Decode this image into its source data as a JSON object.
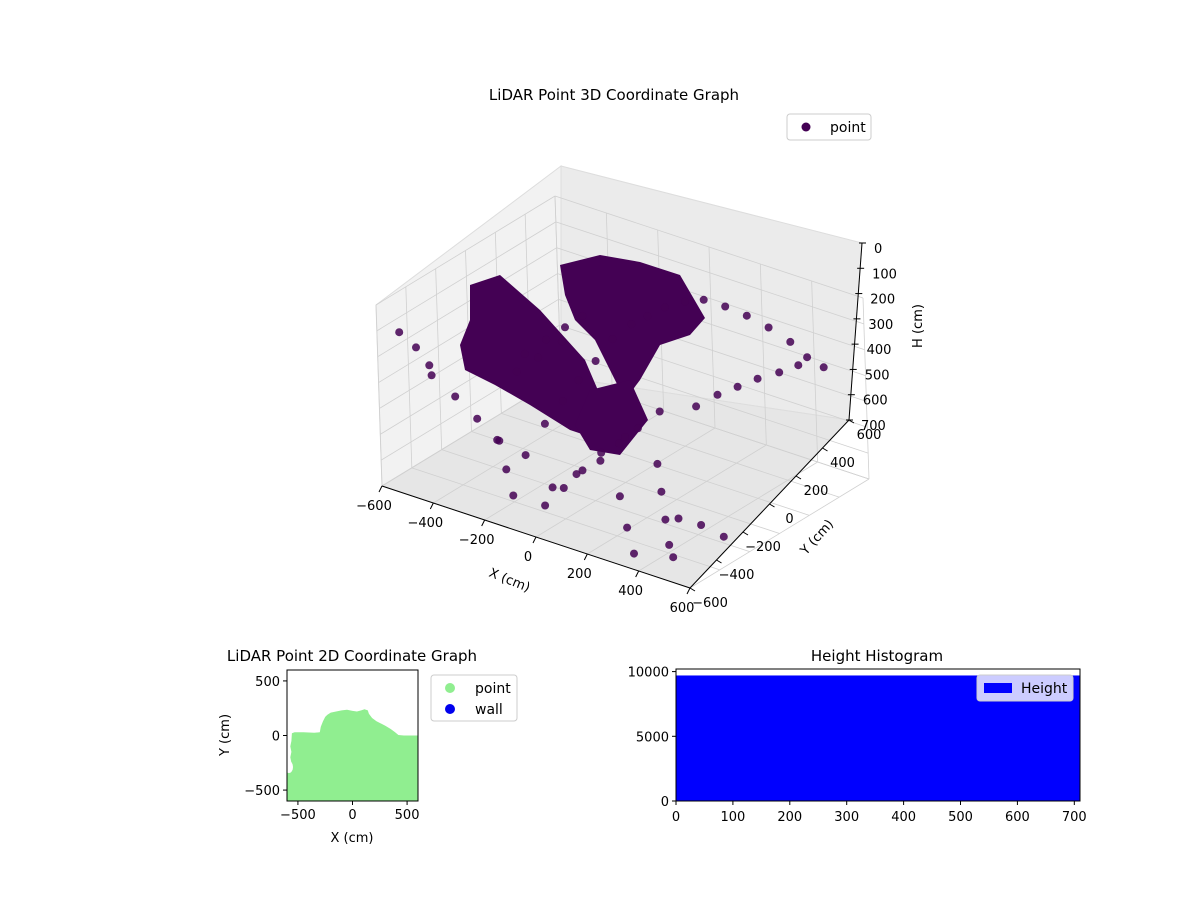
{
  "chart_data": [
    {
      "type": "scatter",
      "projection": "3d",
      "title": "LiDAR Point 3D Coordinate Graph",
      "xlabel": "X (cm)",
      "ylabel": "Y (cm)",
      "zlabel": "H (cm)",
      "xlim": [
        -600,
        600
      ],
      "ylim": [
        -600,
        600
      ],
      "zlim": [
        700,
        0
      ],
      "x_ticks": [
        "−600",
        "−400",
        "−200",
        "0",
        "200",
        "400",
        "600"
      ],
      "y_ticks": [
        "−600",
        "−400",
        "−200",
        "0",
        "200",
        "400",
        "600"
      ],
      "z_ticks": [
        "0",
        "100",
        "200",
        "300",
        "400",
        "500",
        "600",
        "700"
      ],
      "legend": "top-right",
      "grid": true,
      "series": [
        {
          "name": "point",
          "color": "#440154",
          "points_xyz": [
            [
              -560,
              -520,
              120
            ],
            [
              -520,
              -480,
              180
            ],
            [
              -500,
              -430,
              260
            ],
            [
              -540,
              -350,
              340
            ],
            [
              -480,
              -300,
              420
            ],
            [
              -420,
              -260,
              500
            ],
            [
              -380,
              -200,
              590
            ],
            [
              -300,
              -150,
              640
            ],
            [
              -250,
              -100,
              520
            ],
            [
              -200,
              -60,
              430
            ],
            [
              -160,
              -20,
              350
            ],
            [
              -120,
              30,
              280
            ],
            [
              -80,
              80,
              200
            ],
            [
              -40,
              140,
              150
            ],
            [
              0,
              180,
              120
            ],
            [
              40,
              230,
              90
            ],
            [
              90,
              280,
              70
            ],
            [
              140,
              320,
              60
            ],
            [
              200,
              360,
              80
            ],
            [
              260,
              400,
              110
            ],
            [
              320,
              440,
              150
            ],
            [
              380,
              480,
              200
            ],
            [
              420,
              520,
              260
            ],
            [
              460,
              560,
              300
            ],
            [
              120,
              40,
              400
            ],
            [
              80,
              -40,
              450
            ],
            [
              40,
              -100,
              500
            ],
            [
              0,
              -160,
              560
            ],
            [
              -60,
              -220,
              610
            ],
            [
              -120,
              -280,
              660
            ],
            [
              200,
              -120,
              520
            ],
            [
              260,
              -200,
              580
            ],
            [
              320,
              -280,
              640
            ],
            [
              380,
              -360,
              690
            ],
            [
              430,
              -420,
              700
            ],
            [
              -350,
              -50,
              300
            ],
            [
              -300,
              10,
              250
            ],
            [
              -260,
              70,
              210
            ],
            [
              -220,
              120,
              170
            ],
            [
              300,
              -20,
              300
            ],
            [
              350,
              40,
              260
            ],
            [
              400,
              90,
              230
            ],
            [
              450,
              140,
              200
            ],
            [
              500,
              200,
              180
            ],
            [
              540,
              260,
              160
            ],
            [
              -450,
              60,
              440
            ],
            [
              -400,
              120,
              390
            ],
            [
              -340,
              180,
              330
            ],
            [
              160,
              -260,
              380
            ],
            [
              100,
              -320,
              440
            ],
            [
              60,
              -380,
              500
            ],
            [
              20,
              -440,
              560
            ],
            [
              -20,
              -500,
              620
            ],
            [
              240,
              -440,
              520
            ],
            [
              300,
              -500,
              600
            ],
            [
              360,
              -560,
              660
            ],
            [
              -240,
              -420,
              470
            ],
            [
              -180,
              -480,
              540
            ],
            [
              -120,
              -540,
              600
            ],
            [
              560,
              -300,
              620
            ],
            [
              520,
              -380,
              560
            ],
            [
              480,
              -460,
              520
            ]
          ]
        }
      ]
    },
    {
      "type": "scatter",
      "title": "LiDAR Point 2D Coordinate Graph",
      "xlabel": "X (cm)",
      "ylabel": "Y (cm)",
      "xlim": [
        -600,
        600
      ],
      "ylim": [
        -600,
        600
      ],
      "x_ticks": [
        "−500",
        "0",
        "500"
      ],
      "y_ticks": [
        "−500",
        "0",
        "500"
      ],
      "legend": "outside-right",
      "series": [
        {
          "name": "point",
          "color": "#90ee90",
          "outline_xy": [
            [
              -600,
              -600
            ],
            [
              -600,
              -330
            ],
            [
              -570,
              -310
            ],
            [
              -560,
              -250
            ],
            [
              -570,
              -200
            ],
            [
              -560,
              -150
            ],
            [
              -570,
              -100
            ],
            [
              -560,
              -50
            ],
            [
              -555,
              20
            ],
            [
              -530,
              30
            ],
            [
              -450,
              30
            ],
            [
              -350,
              25
            ],
            [
              -300,
              30
            ],
            [
              -290,
              80
            ],
            [
              -270,
              130
            ],
            [
              -250,
              170
            ],
            [
              -230,
              190
            ],
            [
              -200,
              210
            ],
            [
              -150,
              220
            ],
            [
              -100,
              230
            ],
            [
              -50,
              235
            ],
            [
              0,
              225
            ],
            [
              40,
              220
            ],
            [
              80,
              230
            ],
            [
              110,
              240
            ],
            [
              140,
              230
            ],
            [
              150,
              200
            ],
            [
              180,
              160
            ],
            [
              220,
              130
            ],
            [
              260,
              110
            ],
            [
              300,
              90
            ],
            [
              350,
              60
            ],
            [
              390,
              30
            ],
            [
              420,
              5
            ],
            [
              470,
              0
            ],
            [
              600,
              0
            ],
            [
              600,
              -600
            ]
          ]
        },
        {
          "name": "wall",
          "color": "#0000ee",
          "points_xy": []
        }
      ]
    },
    {
      "type": "bar",
      "title": "Height Histogram",
      "xlim": [
        0,
        710
      ],
      "ylim": [
        0,
        10200
      ],
      "x_ticks": [
        "0",
        "100",
        "200",
        "300",
        "400",
        "500",
        "600",
        "700"
      ],
      "y_ticks": [
        "0",
        "5000",
        "10000"
      ],
      "legend": "top-right",
      "series": [
        {
          "name": "Height",
          "color": "#0000ff",
          "bins": [
            [
              0,
              710,
              9700
            ]
          ]
        }
      ]
    }
  ]
}
